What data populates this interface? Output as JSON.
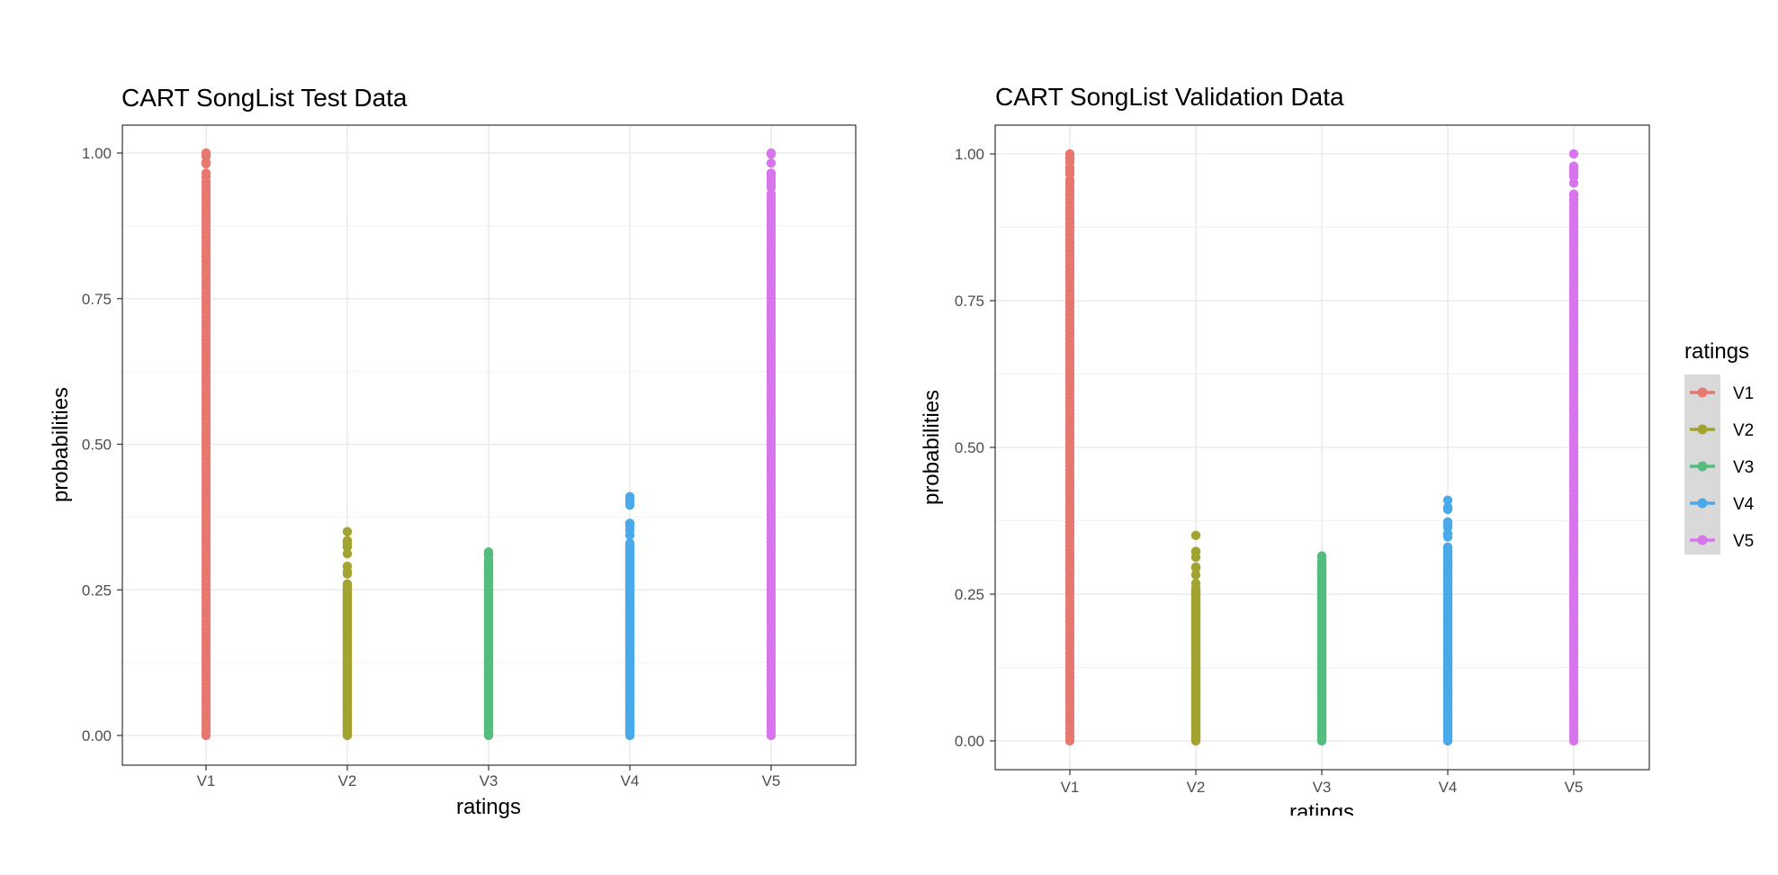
{
  "chart_data": [
    {
      "type": "scatter",
      "title": "CART SongList Test Data",
      "xlabel": "ratings",
      "ylabel": "probabilities",
      "categories": [
        "V1",
        "V2",
        "V3",
        "V4",
        "V5"
      ],
      "yticks": [
        "0.00",
        "0.25",
        "0.50",
        "0.75",
        "1.00"
      ],
      "ylim": [
        0,
        1
      ],
      "grid": true,
      "series": [
        {
          "name": "V1",
          "color": "#e6786f",
          "min": 0.0,
          "max": 1.0,
          "gap_above": 0.95
        },
        {
          "name": "V2",
          "color": "#a3a331",
          "min": 0.0,
          "max": 0.35,
          "gap_above": 0.26
        },
        {
          "name": "V3",
          "color": "#54bd7e",
          "min": 0.0,
          "max": 0.315,
          "gap_above": 0.29
        },
        {
          "name": "V4",
          "color": "#4aa9e9",
          "min": 0.0,
          "max": 0.41,
          "gap_above": 0.33
        },
        {
          "name": "V5",
          "color": "#d874ec",
          "min": 0.0,
          "max": 1.0,
          "gap_above": 0.93
        }
      ]
    },
    {
      "type": "scatter",
      "title": "CART SongList Validation Data",
      "xlabel": "ratings",
      "ylabel": "probabilities",
      "categories": [
        "V1",
        "V2",
        "V3",
        "V4",
        "V5"
      ],
      "yticks": [
        "0.00",
        "0.25",
        "0.50",
        "0.75",
        "1.00"
      ],
      "ylim": [
        0,
        1
      ],
      "grid": true,
      "series": [
        {
          "name": "V1",
          "color": "#e6786f",
          "min": 0.0,
          "max": 1.0,
          "gap_above": 0.95
        },
        {
          "name": "V2",
          "color": "#a3a331",
          "min": 0.0,
          "max": 0.35,
          "gap_above": 0.26
        },
        {
          "name": "V3",
          "color": "#54bd7e",
          "min": 0.0,
          "max": 0.315,
          "gap_above": 0.29
        },
        {
          "name": "V4",
          "color": "#4aa9e9",
          "min": 0.0,
          "max": 0.41,
          "gap_above": 0.33
        },
        {
          "name": "V5",
          "color": "#d874ec",
          "min": 0.0,
          "max": 1.0,
          "gap_above": 0.93
        }
      ]
    }
  ],
  "legend": {
    "title": "ratings",
    "placement": "right",
    "items": [
      {
        "label": "V1",
        "color": "#e6786f"
      },
      {
        "label": "V2",
        "color": "#a3a331"
      },
      {
        "label": "V3",
        "color": "#54bd7e"
      },
      {
        "label": "V4",
        "color": "#4aa9e9"
      },
      {
        "label": "V5",
        "color": "#d874ec"
      }
    ]
  }
}
